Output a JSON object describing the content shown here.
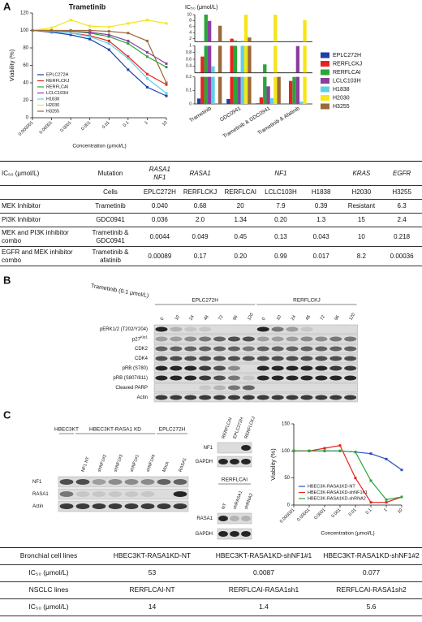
{
  "panel_labels": [
    "A",
    "B",
    "C"
  ],
  "chart_data": [
    {
      "type": "line",
      "title": "Trametinib",
      "xlabel": "Concentration (μmol/L)",
      "ylabel": "Viability (%)",
      "xscale": "log",
      "x": [
        1e-06,
        1e-05,
        0.0001,
        0.001,
        0.01,
        0.1,
        1,
        10
      ],
      "xlim": [
        1e-06,
        10
      ],
      "xticks": [
        1e-06,
        1e-05,
        0.0001,
        0.001,
        0.01,
        0.1,
        1,
        10
      ],
      "ylim": [
        0,
        120
      ],
      "yticks": [
        0,
        20,
        40,
        60,
        80,
        100,
        120
      ],
      "legend": "lower left",
      "series": [
        {
          "name": "EPLC272H",
          "color": "#1f3fa8",
          "values": [
            100,
            98,
            95,
            90,
            78,
            55,
            35,
            25
          ]
        },
        {
          "name": "RERFLCKJ",
          "color": "#e8231f",
          "values": [
            100,
            99,
            97,
            94,
            88,
            70,
            50,
            38
          ]
        },
        {
          "name": "RERFLCAI",
          "color": "#2aa53a",
          "values": [
            100,
            100,
            99,
            97,
            93,
            85,
            70,
            58
          ]
        },
        {
          "name": "LCLC103H",
          "color": "#8a3fa0",
          "values": [
            100,
            100,
            99,
            98,
            95,
            88,
            75,
            62
          ]
        },
        {
          "name": "H1838",
          "color": "#5fd0e8",
          "values": [
            100,
            99,
            97,
            93,
            85,
            68,
            45,
            28
          ]
        },
        {
          "name": "H2030",
          "color": "#f5e51a",
          "values": [
            100,
            103,
            112,
            105,
            104,
            108,
            112,
            108
          ]
        },
        {
          "name": "H3255",
          "color": "#9a6a3a",
          "values": [
            100,
            100,
            100,
            100,
            99,
            97,
            88,
            40
          ]
        }
      ]
    },
    {
      "type": "bar",
      "ylabel": "IC₅₀ (μmol/L)",
      "categories": [
        "Trametinib",
        "GDC0941",
        "Trametinib & GDC0941",
        "Trametinib & Afatinib"
      ],
      "ylims": [
        [
          0,
          0.2
        ],
        [
          0.2,
          1
        ],
        [
          1,
          10
        ]
      ],
      "yticks": [
        [
          0,
          0.1,
          0.2
        ],
        [
          0.4,
          0.6,
          0.8,
          1
        ],
        [
          2,
          4,
          6,
          8,
          10
        ]
      ],
      "legend": "right",
      "series": [
        {
          "name": "EPLC272H",
          "color": "#1f3fa8",
          "values": [
            0.04,
            0.036,
            0.0044,
            0.00089
          ]
        },
        {
          "name": "RERFLCKJ",
          "color": "#e8231f",
          "values": [
            0.68,
            2.0,
            0.049,
            0.17
          ]
        },
        {
          "name": "RERFLCAI",
          "color": "#2aa53a",
          "values": [
            20,
            1.34,
            0.45,
            0.2
          ]
        },
        {
          "name": "LCLC103H",
          "color": "#8a3fa0",
          "values": [
            7.9,
            0.2,
            0.13,
            0.99
          ]
        },
        {
          "name": "H1838",
          "color": "#5fd0e8",
          "values": [
            0.39,
            1.3,
            0.043,
            0.017
          ]
        },
        {
          "name": "H2030",
          "color": "#f5e51a",
          "values": [
            null,
            15,
            10,
            8.2
          ]
        },
        {
          "name": "H3255",
          "color": "#9a6a3a",
          "values": [
            6.3,
            2.4,
            0.218,
            0.00036
          ]
        }
      ]
    },
    {
      "type": "line",
      "xlabel": "Concentration (μmol/L)",
      "ylabel": "Viability (%)",
      "xscale": "log",
      "x": [
        1e-06,
        1e-05,
        0.0001,
        0.001,
        0.01,
        0.1,
        1,
        10
      ],
      "xlim": [
        1e-06,
        10
      ],
      "xticks": [
        1e-06,
        1e-05,
        0.0001,
        0.001,
        0.01,
        0.1,
        1,
        10
      ],
      "ylim": [
        0,
        150
      ],
      "yticks": [
        0,
        50,
        100,
        150
      ],
      "legend": "lower left",
      "series": [
        {
          "name": "HBEC3K-RASA1KD-NT",
          "color": "#2b4fc0",
          "values": [
            100,
            100,
            100,
            100,
            98,
            95,
            85,
            65
          ]
        },
        {
          "name": "HBEC3K-RASA1KD-shNF1#1",
          "color": "#e8231f",
          "values": [
            100,
            100,
            105,
            110,
            50,
            5,
            5,
            15
          ]
        },
        {
          "name": "HBEC3K-RASA1KD-shRNA2",
          "color": "#2aa53a",
          "values": [
            100,
            100,
            100,
            100,
            98,
            45,
            10,
            15
          ]
        }
      ]
    }
  ],
  "table_a": {
    "header": [
      "IC₅₀ (μmol/L)",
      "Mutation",
      [
        "RASA1",
        "NF1"
      ],
      "RASA1",
      null,
      "NF1",
      null,
      "KRAS",
      "EGFR"
    ],
    "rows": [
      [
        null,
        "Cells",
        "EPLC272H",
        "RERFLCKJ",
        "RERFLCAI",
        "LCLC103H",
        "H1838",
        "H2030",
        "H3255"
      ],
      [
        "MEK Inhibitor",
        "Trametinib",
        "0.040",
        "0.68",
        "20",
        "7.9",
        "0.39",
        "Resistant",
        "6.3"
      ],
      [
        "PI3K Inhibitor",
        "GDC0941",
        "0.036",
        "2.0",
        "1.34",
        "0.20",
        "1.3",
        "15",
        "2.4"
      ],
      [
        "MEK and PI3K inhibitor combo",
        "Trametinib & GDC0941",
        "0.0044",
        "0.049",
        "0.45",
        "0.13",
        "0.043",
        "10",
        "0.218"
      ],
      [
        "EGFR and MEK inhibitor combo",
        "Trametinib & afatinib",
        "0.00089",
        "0.17",
        "0.20",
        "0.99",
        "0.017",
        "8.2",
        "0.00036"
      ]
    ]
  },
  "blot_b": {
    "treatment": "Trametinib (0.1 μmol/L)",
    "groups": [
      "EPLC272H",
      "RERFLCKJ"
    ],
    "lanes": [
      "0",
      "10",
      "24",
      "48",
      "72",
      "96",
      "120",
      "0",
      "10",
      "24",
      "48",
      "72",
      "96",
      "120"
    ],
    "rows": [
      "pERK1/2 (T202/Y204)",
      {
        "label": "p27",
        "sup": "Kip1"
      },
      "CDK2",
      "CDK4",
      "pRB (S780)",
      "pRB (S807/811)",
      "Cleaved PARP",
      "Actin"
    ]
  },
  "blot_c1": {
    "groups": [
      "HBEC3KT",
      "HBEC3KT-RASA1 KD",
      "EPLC272H"
    ],
    "lanes": [
      null,
      "NF1 NT",
      "shNF1#2",
      "shNF1#3",
      "shNF1#1",
      "shNF1#4",
      "Mock",
      "RASA1"
    ],
    "rows": [
      "NF1",
      "RASA1",
      "Actin"
    ]
  },
  "blot_c2": {
    "lanes": [
      "RERFLCAI",
      "EPLC272H",
      "RERFLCKJ"
    ],
    "rows": [
      "NF1",
      "GAPDH"
    ]
  },
  "blot_c3": {
    "groups": [
      "RERFLCAI"
    ],
    "lanes": [
      "NT",
      "shRASA1",
      "shRNA2"
    ],
    "rows": [
      "RASA1",
      "GAPDH"
    ]
  },
  "table_c": {
    "rows": [
      [
        "Bronchial cell lines",
        "HBEC3KT-RASA1KD-NT",
        "HBEC3KT-RASA1KD-shNF1#1",
        "HBEC3KT-RASA1KD-shNF1#2"
      ],
      [
        "IC₅₀ (μmol/L)",
        "53",
        "0.0087",
        "0.077"
      ],
      [
        "NSCLC lines",
        "RERFLCAI-NT",
        "RERFLCAI-RASA1sh1",
        "RERFLCAI-RASA1sh2"
      ],
      [
        "IC₅₀ (μmol/L)",
        "14",
        "1.4",
        "5.6"
      ]
    ]
  }
}
